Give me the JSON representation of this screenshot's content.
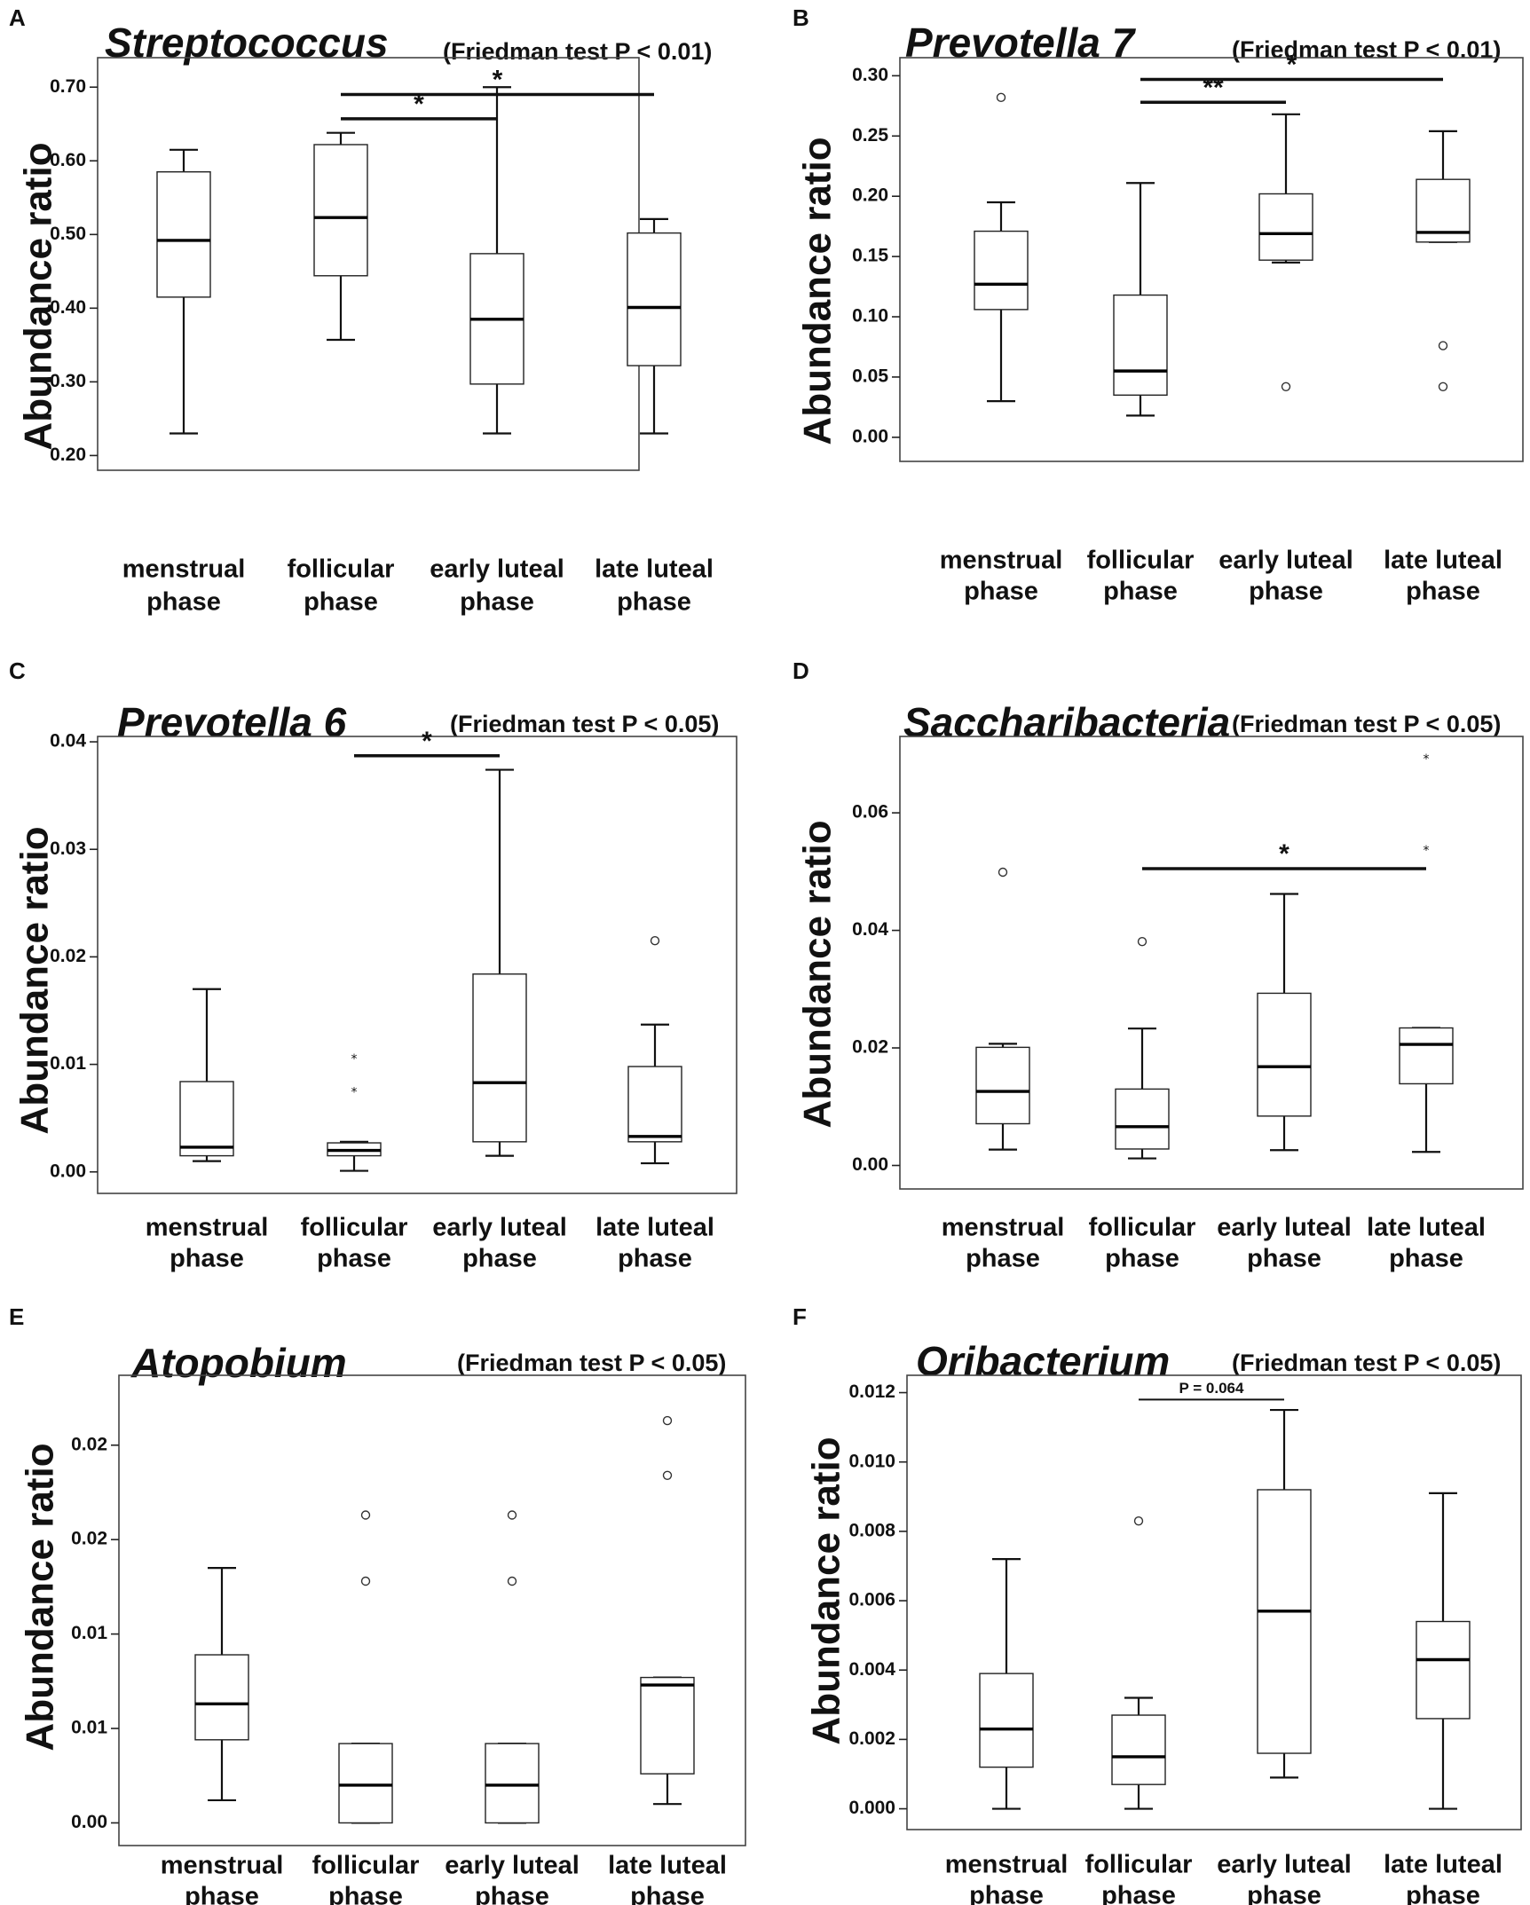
{
  "chart_data": [
    {
      "type": "boxplot",
      "letter": "A",
      "title": "Streptococcus",
      "subtitle": "(Friedman test P < 0.01)",
      "ylabel": "Abundance ratio",
      "xlabel": "",
      "ylim": [
        0.18,
        0.74
      ],
      "yticks": [
        0.2,
        0.3,
        0.4,
        0.5,
        0.6,
        0.7
      ],
      "yticklabels": [
        "0.20",
        "0.30",
        "0.40",
        "0.50",
        "0.60",
        "0.70"
      ],
      "categories": [
        [
          "menstrual",
          "phase"
        ],
        [
          "follicular",
          "phase"
        ],
        [
          "early luteal",
          "phase"
        ],
        [
          "late luteal",
          "phase"
        ]
      ],
      "boxes": [
        {
          "min": 0.23,
          "q1": 0.415,
          "median": 0.492,
          "q3": 0.585,
          "max": 0.615,
          "outliers": [],
          "extremes": []
        },
        {
          "min": 0.357,
          "q1": 0.444,
          "median": 0.523,
          "q3": 0.622,
          "max": 0.638,
          "outliers": [],
          "extremes": []
        },
        {
          "min": 0.23,
          "q1": 0.297,
          "median": 0.385,
          "q3": 0.474,
          "max": 0.7,
          "outliers": [],
          "extremes": []
        },
        {
          "min": 0.23,
          "q1": 0.322,
          "median": 0.401,
          "q3": 0.502,
          "max": 0.521,
          "outliers": [],
          "extremes": []
        }
      ],
      "comparisons": [
        {
          "from": 2,
          "to": 3,
          "y": 0.657,
          "label": "*"
        },
        {
          "from": 2,
          "to": 4,
          "y": 0.69,
          "label": "*"
        }
      ]
    },
    {
      "type": "boxplot",
      "letter": "B",
      "title": "Prevotella 7",
      "subtitle": "(Friedman test P < 0.01)",
      "ylabel": "Abundance ratio",
      "xlabel": "",
      "ylim": [
        -0.02,
        0.315
      ],
      "yticks": [
        0.0,
        0.05,
        0.1,
        0.15,
        0.2,
        0.25,
        0.3
      ],
      "yticklabels": [
        "0.00",
        "0.05",
        "0.10",
        "0.15",
        "0.20",
        "0.25",
        "0.30"
      ],
      "categories": [
        [
          "menstrual",
          "phase"
        ],
        [
          "follicular",
          "phase"
        ],
        [
          "early luteal",
          "phase"
        ],
        [
          "late luteal",
          "phase"
        ]
      ],
      "boxes": [
        {
          "min": 0.03,
          "q1": 0.106,
          "median": 0.127,
          "q3": 0.171,
          "max": 0.195,
          "outliers": [
            0.282
          ],
          "extremes": []
        },
        {
          "min": 0.018,
          "q1": 0.035,
          "median": 0.055,
          "q3": 0.118,
          "max": 0.211,
          "outliers": [],
          "extremes": []
        },
        {
          "min": 0.145,
          "q1": 0.147,
          "median": 0.169,
          "q3": 0.202,
          "max": 0.268,
          "outliers": [
            0.042
          ],
          "extremes": []
        },
        {
          "min": 0.162,
          "q1": 0.162,
          "median": 0.17,
          "q3": 0.214,
          "max": 0.254,
          "outliers": [
            0.076,
            0.042
          ],
          "extremes": []
        }
      ],
      "comparisons": [
        {
          "from": 2,
          "to": 3,
          "y": 0.278,
          "label": "**"
        },
        {
          "from": 2,
          "to": 4,
          "y": 0.297,
          "label": "*"
        }
      ]
    },
    {
      "type": "boxplot",
      "letter": "C",
      "title": "Prevotella 6",
      "subtitle": "(Friedman test P < 0.05)",
      "ylabel": "Abundance ratio",
      "xlabel": "",
      "ylim": [
        -0.002,
        0.0405
      ],
      "yticks": [
        0.0,
        0.01,
        0.02,
        0.03,
        0.04
      ],
      "yticklabels": [
        "0.00",
        "0.01",
        "0.02",
        "0.03",
        "0.04"
      ],
      "categories": [
        [
          "menstrual",
          "phase"
        ],
        [
          "follicular",
          "phase"
        ],
        [
          "early luteal",
          "phase"
        ],
        [
          "late luteal",
          "phase"
        ]
      ],
      "boxes": [
        {
          "min": 0.001,
          "q1": 0.0015,
          "median": 0.0023,
          "q3": 0.0084,
          "max": 0.017,
          "outliers": [],
          "extremes": []
        },
        {
          "min": 0.0001,
          "q1": 0.0015,
          "median": 0.002,
          "q3": 0.0027,
          "max": 0.0028,
          "outliers": [],
          "extremes": [
            0.0108,
            0.0077
          ]
        },
        {
          "min": 0.0015,
          "q1": 0.0028,
          "median": 0.0083,
          "q3": 0.0184,
          "max": 0.0374,
          "outliers": [],
          "extremes": []
        },
        {
          "min": 0.0008,
          "q1": 0.0028,
          "median": 0.0033,
          "q3": 0.0098,
          "max": 0.0137,
          "outliers": [
            0.0215
          ],
          "extremes": []
        }
      ],
      "comparisons": [
        {
          "from": 2,
          "to": 3,
          "y": 0.0387,
          "label": "*"
        }
      ]
    },
    {
      "type": "boxplot",
      "letter": "D",
      "title": "Saccharibacteria",
      "subtitle": "(Friedman test P < 0.05)",
      "ylabel": "Abundance ratio",
      "xlabel": "",
      "ylim": [
        -0.004,
        0.073
      ],
      "yticks": [
        0.0,
        0.02,
        0.04,
        0.06
      ],
      "yticklabels": [
        "0.00",
        "0.02",
        "0.04",
        "0.06"
      ],
      "categories": [
        [
          "menstrual",
          "phase"
        ],
        [
          "follicular",
          "phase"
        ],
        [
          "early luteal",
          "phase"
        ],
        [
          "late luteal",
          "phase"
        ]
      ],
      "boxes": [
        {
          "min": 0.0027,
          "q1": 0.0071,
          "median": 0.0126,
          "q3": 0.0201,
          "max": 0.0207,
          "outliers": [
            0.0499
          ],
          "extremes": []
        },
        {
          "min": 0.0012,
          "q1": 0.0028,
          "median": 0.0066,
          "q3": 0.013,
          "max": 0.0233,
          "outliers": [
            0.0381
          ],
          "extremes": []
        },
        {
          "min": 0.0026,
          "q1": 0.0084,
          "median": 0.0168,
          "q3": 0.0293,
          "max": 0.0462,
          "outliers": [],
          "extremes": []
        },
        {
          "min": 0.0023,
          "q1": 0.0139,
          "median": 0.0206,
          "q3": 0.0234,
          "max": 0.0234,
          "outliers": [],
          "extremes": [
            0.0697,
            0.0541
          ]
        }
      ],
      "comparisons": [
        {
          "from": 2,
          "to": 4,
          "y": 0.0505,
          "label": "*"
        }
      ]
    },
    {
      "type": "boxplot",
      "letter": "E",
      "title": "Atopobium",
      "subtitle": "(Friedman test P < 0.05)",
      "ylabel": "Abundance ratio",
      "xlabel": "",
      "ylim": [
        -0.0012,
        0.0237
      ],
      "yticks": [
        0.0,
        0.005,
        0.01,
        0.015,
        0.02
      ],
      "yticklabels": [
        "0.00",
        "0.01",
        "0.01",
        "0.02",
        "0.02"
      ],
      "categories": [
        [
          "menstrual",
          "phase"
        ],
        [
          "follicular",
          "phase"
        ],
        [
          "early luteal",
          "phase"
        ],
        [
          "late luteal",
          "phase"
        ]
      ],
      "boxes": [
        {
          "min": 0.0012,
          "q1": 0.0044,
          "median": 0.0063,
          "q3": 0.0089,
          "max": 0.0135,
          "outliers": [],
          "extremes": []
        },
        {
          "min": 0.0,
          "q1": 0.0,
          "median": 0.002,
          "q3": 0.0042,
          "max": 0.0042,
          "outliers": [
            0.0163,
            0.0128
          ],
          "extremes": []
        },
        {
          "min": 0.0,
          "q1": 0.0,
          "median": 0.002,
          "q3": 0.0042,
          "max": 0.0042,
          "outliers": [
            0.0163,
            0.0128
          ],
          "extremes": []
        },
        {
          "min": 0.001,
          "q1": 0.0026,
          "median": 0.0073,
          "q3": 0.0077,
          "max": 0.0077,
          "outliers": [
            0.0213,
            0.0184
          ],
          "extremes": []
        }
      ],
      "comparisons": []
    },
    {
      "type": "boxplot",
      "letter": "F",
      "title": "Oribacterium",
      "subtitle": "(Friedman test P < 0.05)",
      "ylabel": "Abundance ratio",
      "xlabel": "",
      "ylim": [
        -0.0006,
        0.0125
      ],
      "yticks": [
        0.0,
        0.002,
        0.004,
        0.006,
        0.008,
        0.01,
        0.012
      ],
      "yticklabels": [
        "0.000",
        "0.002",
        "0.004",
        "0.006",
        "0.008",
        "0.010",
        "0.012"
      ],
      "categories": [
        [
          "menstrual",
          "phase"
        ],
        [
          "follicular",
          "phase"
        ],
        [
          "early luteal",
          "phase"
        ],
        [
          "late luteal",
          "phase"
        ]
      ],
      "boxes": [
        {
          "min": 0.0,
          "q1": 0.0012,
          "median": 0.0023,
          "q3": 0.0039,
          "max": 0.0072,
          "outliers": [],
          "extremes": []
        },
        {
          "min": 0.0,
          "q1": 0.0007,
          "median": 0.0015,
          "q3": 0.0027,
          "max": 0.0032,
          "outliers": [
            0.0083
          ],
          "extremes": []
        },
        {
          "min": 0.0009,
          "q1": 0.0016,
          "median": 0.0057,
          "q3": 0.0092,
          "max": 0.0115,
          "outliers": [],
          "extremes": []
        },
        {
          "min": 0.0,
          "q1": 0.0026,
          "median": 0.0043,
          "q3": 0.0054,
          "max": 0.0091,
          "outliers": [],
          "extremes": []
        }
      ],
      "comparisons": [
        {
          "from": 2,
          "to": 3,
          "y": 0.0118,
          "label": "P = 0.064",
          "small": true
        }
      ]
    }
  ]
}
